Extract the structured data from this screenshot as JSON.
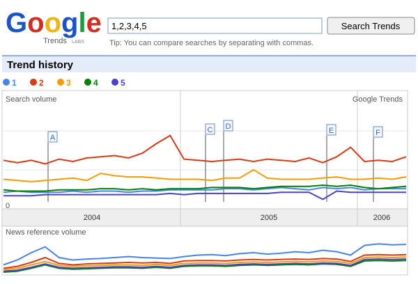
{
  "header": {
    "logo": "Google",
    "logo_sub": "Trends",
    "logo_badge": "LABS",
    "query": "1,2,3,4,5",
    "button": "Search Trends",
    "tip": "Tip: You can compare searches by separating with commas."
  },
  "section_title": "Trend history",
  "chart_data": [
    {
      "type": "line",
      "title": "Search volume",
      "source": "Google Trends",
      "ylim": [
        0,
        100
      ],
      "yticks": [
        0
      ],
      "year_labels": [
        "2004",
        "2005",
        "2006"
      ],
      "annotations": [
        "A",
        "C",
        "D",
        "E",
        "F"
      ],
      "series": [
        {
          "name": "1",
          "color": "#4684ee",
          "values": [
            14,
            15,
            14,
            14,
            14,
            15,
            14,
            15,
            15,
            14,
            15,
            15,
            16,
            16,
            16,
            16,
            17,
            17,
            16,
            17,
            18,
            17,
            16,
            18,
            17,
            18,
            16,
            17,
            17,
            17
          ]
        },
        {
          "name": "2",
          "color": "#dc3912",
          "values": [
            41,
            39,
            41,
            38,
            42,
            40,
            43,
            44,
            45,
            43,
            47,
            55,
            62,
            42,
            41,
            40,
            41,
            42,
            40,
            42,
            41,
            40,
            43,
            39,
            44,
            52,
            40,
            41,
            40,
            44
          ]
        },
        {
          "name": "3",
          "color": "#ff9900",
          "values": [
            25,
            24,
            23,
            24,
            25,
            26,
            24,
            30,
            28,
            27,
            27,
            26,
            25,
            25,
            25,
            24,
            26,
            26,
            33,
            26,
            25,
            25,
            25,
            26,
            27,
            25,
            25,
            26,
            25,
            27
          ]
        },
        {
          "name": "4",
          "color": "#008000",
          "values": [
            16,
            15,
            15,
            15,
            16,
            16,
            16,
            17,
            17,
            16,
            17,
            16,
            17,
            17,
            17,
            18,
            18,
            18,
            17,
            18,
            19,
            19,
            19,
            20,
            19,
            20,
            18,
            17,
            18,
            19
          ]
        },
        {
          "name": "5",
          "color": "#4942cc",
          "values": [
            11,
            11,
            11,
            12,
            12,
            12,
            12,
            12,
            12,
            12,
            12,
            12,
            13,
            12,
            13,
            13,
            13,
            13,
            13,
            13,
            14,
            14,
            14,
            8,
            15,
            14,
            14,
            14,
            14,
            14
          ]
        }
      ]
    },
    {
      "type": "line",
      "title": "News reference volume",
      "ylim": [
        0,
        100
      ],
      "series": [
        {
          "color": "#4684ee",
          "values": [
            25,
            35,
            50,
            62,
            40,
            35,
            37,
            38,
            40,
            42,
            40,
            39,
            38,
            42,
            45,
            46,
            44,
            48,
            50,
            47,
            49,
            52,
            50,
            55,
            52,
            45,
            65,
            68,
            66,
            67
          ]
        },
        {
          "color": "#dc3912",
          "values": [
            18,
            22,
            30,
            40,
            28,
            25,
            27,
            28,
            29,
            30,
            29,
            30,
            28,
            33,
            34,
            34,
            33,
            35,
            36,
            35,
            36,
            37,
            36,
            38,
            37,
            32,
            45,
            46,
            45,
            46
          ]
        },
        {
          "color": "#ff9900",
          "values": [
            15,
            18,
            25,
            32,
            24,
            22,
            23,
            24,
            25,
            25,
            24,
            26,
            24,
            28,
            29,
            29,
            28,
            30,
            31,
            30,
            31,
            32,
            31,
            33,
            32,
            28,
            40,
            41,
            40,
            41
          ]
        },
        {
          "color": "#008000",
          "values": [
            10,
            12,
            18,
            25,
            18,
            16,
            17,
            18,
            19,
            19,
            18,
            20,
            18,
            22,
            23,
            23,
            22,
            24,
            25,
            24,
            25,
            26,
            25,
            27,
            26,
            22,
            33,
            34,
            33,
            34
          ]
        },
        {
          "color": "#4942cc",
          "values": [
            12,
            14,
            20,
            27,
            20,
            18,
            19,
            20,
            21,
            21,
            20,
            22,
            20,
            24,
            25,
            25,
            24,
            26,
            27,
            26,
            27,
            28,
            27,
            29,
            28,
            24,
            36,
            37,
            36,
            37
          ]
        }
      ]
    }
  ]
}
